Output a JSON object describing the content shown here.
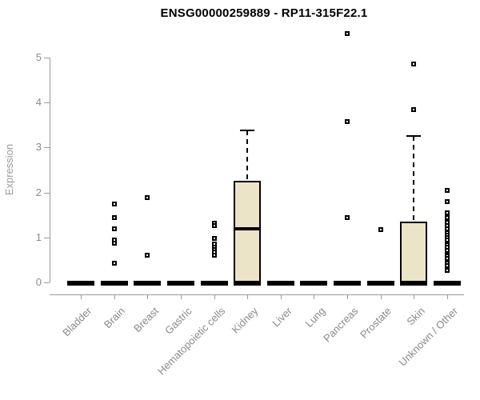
{
  "chart_data": {
    "type": "box",
    "title": "ENSG00000259889 - RP11-315F22.1",
    "xlabel": "",
    "ylabel": "Expression",
    "ylim": [
      0,
      5
    ],
    "yticks": [
      0,
      1,
      2,
      3,
      4,
      5
    ],
    "grid": false,
    "legend": false,
    "categories": [
      "Bladder",
      "Brain",
      "Breast",
      "Gastric",
      "Hematopoietic cells",
      "Kidney",
      "Liver",
      "Lung",
      "Pancreas",
      "Prostate",
      "Skin",
      "Unknown / Other"
    ],
    "boxes": [
      {
        "category": "Bladder",
        "q1": 0,
        "median": 0,
        "q3": 0,
        "whisker_low": 0,
        "whisker_high": 0,
        "outliers": []
      },
      {
        "category": "Brain",
        "q1": 0,
        "median": 0,
        "q3": 0,
        "whisker_low": 0,
        "whisker_high": 0,
        "outliers": [
          1.75,
          1.44,
          1.19,
          0.94,
          0.88,
          0.43
        ]
      },
      {
        "category": "Breast",
        "q1": 0,
        "median": 0,
        "q3": 0,
        "whisker_low": 0,
        "whisker_high": 0,
        "outliers": [
          1.88,
          0.61
        ]
      },
      {
        "category": "Gastric",
        "q1": 0,
        "median": 0,
        "q3": 0,
        "whisker_low": 0,
        "whisker_high": 0,
        "outliers": []
      },
      {
        "category": "Hematopoietic cells",
        "q1": 0,
        "median": 0,
        "q3": 0,
        "whisker_low": 0,
        "whisker_high": 0,
        "outliers": [
          1.32,
          1.27,
          0.97,
          0.85,
          0.79,
          0.73,
          0.67,
          0.61
        ]
      },
      {
        "category": "Kidney",
        "q1": 0,
        "median": 1.19,
        "q3": 2.26,
        "whisker_low": 0,
        "whisker_high": 3.38,
        "outliers": []
      },
      {
        "category": "Liver",
        "q1": 0,
        "median": 0,
        "q3": 0,
        "whisker_low": 0,
        "whisker_high": 0,
        "outliers": []
      },
      {
        "category": "Lung",
        "q1": 0,
        "median": 0,
        "q3": 0,
        "whisker_low": 0,
        "whisker_high": 0,
        "outliers": []
      },
      {
        "category": "Pancreas",
        "q1": 0,
        "median": 0,
        "q3": 0,
        "whisker_low": 0,
        "whisker_high": 0,
        "outliers": [
          5.54,
          3.57,
          1.45
        ]
      },
      {
        "category": "Prostate",
        "q1": 0,
        "median": 0,
        "q3": 0,
        "whisker_low": 0,
        "whisker_high": 0,
        "outliers": [
          1.18
        ]
      },
      {
        "category": "Skin",
        "q1": 0,
        "median": 0,
        "q3": 1.36,
        "whisker_low": 0,
        "whisker_high": 3.26,
        "outliers": [
          4.86,
          3.84
        ]
      },
      {
        "category": "Unknown / Other",
        "q1": 0,
        "median": 0,
        "q3": 0,
        "whisker_low": 0,
        "whisker_high": 0,
        "outliers": [
          2.05,
          1.79,
          1.55,
          1.44,
          1.34,
          1.27,
          1.19,
          1.1,
          1.05,
          0.99,
          0.94,
          0.88,
          0.83,
          0.78,
          0.72,
          0.63,
          0.58,
          0.53,
          0.47,
          0.42,
          0.37,
          0.31,
          0.27
        ]
      }
    ],
    "colors": {
      "box_fill": "#ece4c7",
      "box_border": "#000000",
      "axis": "#9a9a9a",
      "tick_label": "#8a8a8a",
      "title": "#000000"
    }
  }
}
